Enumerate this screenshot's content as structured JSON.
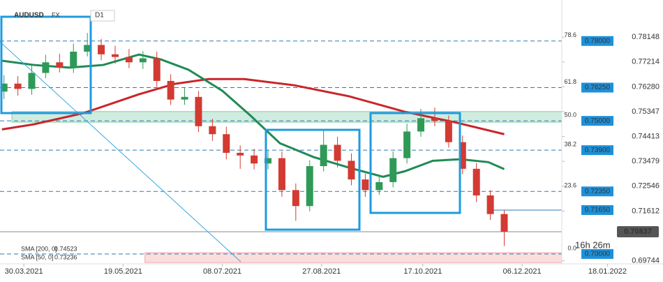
{
  "chart_data": {
    "type": "candlestick",
    "symbol": "AUDUSD",
    "market": "FX",
    "timeframe": "D1",
    "x": [
      -10,
      -3,
      4,
      11,
      18,
      25,
      32,
      39,
      46,
      53,
      60,
      67,
      74,
      81,
      88,
      95,
      102,
      109,
      116,
      123,
      130,
      137,
      144,
      151,
      158,
      165,
      172,
      179,
      186,
      193,
      200,
      207,
      214,
      221,
      228,
      235,
      242
    ],
    "open": [
      0.761,
      0.764,
      0.762,
      0.768,
      0.772,
      0.77,
      0.776,
      0.7785,
      0.775,
      0.774,
      0.772,
      0.7735,
      0.765,
      0.758,
      0.759,
      0.748,
      0.745,
      0.738,
      0.737,
      0.734,
      0.736,
      0.724,
      0.718,
      0.733,
      0.741,
      0.735,
      0.728,
      0.724,
      0.727,
      0.736,
      0.746,
      0.751,
      0.75,
      0.742,
      0.732,
      0.722,
      0.715
    ],
    "high": [
      0.7672,
      0.7668,
      0.7712,
      0.7748,
      0.7752,
      0.779,
      0.783,
      0.7808,
      0.7782,
      0.777,
      0.7762,
      0.776,
      0.7675,
      0.7625,
      0.7612,
      0.7508,
      0.7478,
      0.7408,
      0.7395,
      0.7392,
      0.7385,
      0.7265,
      0.7352,
      0.7465,
      0.744,
      0.7378,
      0.7302,
      0.7295,
      0.7385,
      0.749,
      0.7545,
      0.755,
      0.752,
      0.7445,
      0.7342,
      0.724,
      0.7165
    ],
    "low": [
      0.7582,
      0.7595,
      0.7598,
      0.766,
      0.7682,
      0.768,
      0.7742,
      0.7728,
      0.7715,
      0.7698,
      0.7695,
      0.7628,
      0.756,
      0.756,
      0.7458,
      0.7425,
      0.7355,
      0.732,
      0.7318,
      0.7318,
      0.7215,
      0.7125,
      0.716,
      0.731,
      0.7325,
      0.7258,
      0.7215,
      0.7222,
      0.725,
      0.734,
      0.744,
      0.748,
      0.74,
      0.73,
      0.7195,
      0.7128,
      0.703
    ],
    "close": [
      0.764,
      0.762,
      0.768,
      0.772,
      0.77,
      0.776,
      0.7785,
      0.775,
      0.774,
      0.772,
      0.7735,
      0.765,
      0.758,
      0.759,
      0.748,
      0.745,
      0.738,
      0.737,
      0.734,
      0.736,
      0.724,
      0.718,
      0.733,
      0.741,
      0.735,
      0.728,
      0.724,
      0.727,
      0.736,
      0.746,
      0.751,
      0.75,
      0.742,
      0.732,
      0.722,
      0.715,
      0.7084
    ],
    "up_color": "#2f9a57",
    "down_color": "#d23a32",
    "series": [
      {
        "name": "SMA [200, 0]",
        "last": 0.74523,
        "color": "#c8252b",
        "x": [
          -11,
          5,
          30,
          58,
          76,
          93,
          111,
          136,
          164,
          192,
          217,
          242
        ],
        "values": [
          0.7468,
          0.7487,
          0.7529,
          0.76,
          0.7639,
          0.7657,
          0.7657,
          0.7634,
          0.7592,
          0.7534,
          0.7495,
          0.745
        ]
      },
      {
        "name": "SMA [50, 0]",
        "last": 0.73236,
        "color": "#1f8a55",
        "x": [
          -11,
          5,
          23,
          40,
          58,
          69,
          83,
          100,
          114,
          129,
          146,
          164,
          181,
          192,
          206,
          220,
          234,
          242
        ],
        "values": [
          0.7726,
          0.771,
          0.77,
          0.771,
          0.7749,
          0.7731,
          0.7692,
          0.7613,
          0.7521,
          0.7416,
          0.7364,
          0.7324,
          0.729,
          0.7311,
          0.735,
          0.7356,
          0.7345,
          0.7319
        ]
      }
    ],
    "fib_levels": [
      {
        "ratio": "78.6",
        "value": 0.78,
        "label": "0.78000"
      },
      {
        "ratio": "61.8",
        "value": 0.7625,
        "label": "0.76250"
      },
      {
        "ratio": "50.0",
        "value": 0.75,
        "label": "0.75000"
      },
      {
        "ratio": "38.2",
        "value": 0.739,
        "label": "0.73900"
      },
      {
        "ratio": "23.6",
        "value": 0.7235,
        "label": "0.72350"
      },
      {
        "ratio": "0.0",
        "value": 0.7,
        "label": "0.70000"
      }
    ],
    "support_line": {
      "value": 0.7165,
      "label": "0.71650",
      "x_start": 236
    },
    "resistance_zone": {
      "low": 0.7495,
      "high": 0.7535,
      "x_start": -6
    },
    "support_zone": {
      "low": 0.6968,
      "high": 0.7005,
      "x_start": 61
    },
    "last_price": 0.70837,
    "countdown": "16h 26m",
    "xlim": [
      -12,
      271
    ],
    "ylim": [
      0.6942,
      0.7954
    ],
    "yticks": [
      0.78148,
      0.77214,
      {
        "value": 0.7628,
        "label": "0.76280"
      },
      0.75347,
      0.74413,
      0.73479,
      0.72546,
      0.71612,
      0.69744
    ],
    "xticks": [
      {
        "value": 0,
        "label": "30.03.2021"
      },
      {
        "value": 50,
        "label": "19.05.2021"
      },
      {
        "value": 100,
        "label": "08.07.2021"
      },
      {
        "value": 150,
        "label": "27.08.2021"
      },
      {
        "value": 201,
        "label": "17.10.2021"
      },
      {
        "value": 251,
        "label": "06.12.2021"
      },
      {
        "value": 294,
        "label": "18.01.2022"
      }
    ]
  }
}
